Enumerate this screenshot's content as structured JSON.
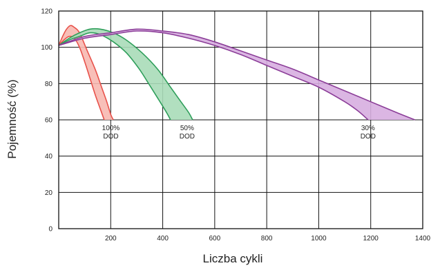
{
  "chart_data": {
    "type": "area",
    "xlabel": "Liczba cykli",
    "ylabel": "Pojemność (%)",
    "xlim": [
      0,
      1400
    ],
    "ylim": [
      0,
      120
    ],
    "x_ticks": [
      200,
      400,
      600,
      800,
      1000,
      1200,
      1400
    ],
    "y_ticks": [
      0,
      20,
      40,
      60,
      80,
      100,
      120
    ],
    "grid": true,
    "series": [
      {
        "color": "#e8514a",
        "fill": "#f7b8b0",
        "label_lines": [
          "100%",
          "DOD"
        ],
        "upper": [
          [
            0,
            101
          ],
          [
            15,
            106
          ],
          [
            30,
            110
          ],
          [
            45,
            112
          ],
          [
            60,
            111
          ],
          [
            80,
            108
          ],
          [
            110,
            98
          ],
          [
            140,
            88
          ],
          [
            165,
            78
          ],
          [
            185,
            70
          ],
          [
            200,
            63
          ],
          [
            210,
            60
          ]
        ],
        "lower": [
          [
            0,
            101
          ],
          [
            20,
            104
          ],
          [
            40,
            106
          ],
          [
            60,
            105
          ],
          [
            80,
            100
          ],
          [
            100,
            92
          ],
          [
            120,
            83
          ],
          [
            140,
            74
          ],
          [
            160,
            66
          ],
          [
            175,
            60
          ]
        ]
      },
      {
        "color": "#2e9e5a",
        "fill": "#a8dcb8",
        "label_lines": [
          "50%",
          "DOD"
        ],
        "upper": [
          [
            0,
            101
          ],
          [
            40,
            105
          ],
          [
            80,
            108
          ],
          [
            120,
            110
          ],
          [
            160,
            110
          ],
          [
            210,
            108
          ],
          [
            260,
            104
          ],
          [
            320,
            97
          ],
          [
            380,
            88
          ],
          [
            430,
            78
          ],
          [
            470,
            70
          ],
          [
            500,
            64
          ],
          [
            515,
            60
          ]
        ],
        "lower": [
          [
            0,
            101
          ],
          [
            40,
            104
          ],
          [
            80,
            106
          ],
          [
            120,
            108
          ],
          [
            160,
            107
          ],
          [
            210,
            103
          ],
          [
            260,
            97
          ],
          [
            310,
            88
          ],
          [
            350,
            79
          ],
          [
            385,
            71
          ],
          [
            415,
            64
          ],
          [
            430,
            60
          ]
        ]
      },
      {
        "color": "#8b3d98",
        "fill": "#d7aee0",
        "label_lines": [
          "30%",
          "DOD"
        ],
        "upper": [
          [
            0,
            101
          ],
          [
            100,
            106
          ],
          [
            200,
            108
          ],
          [
            300,
            110
          ],
          [
            400,
            109
          ],
          [
            500,
            107
          ],
          [
            600,
            103
          ],
          [
            700,
            98
          ],
          [
            800,
            93
          ],
          [
            900,
            88
          ],
          [
            1000,
            82
          ],
          [
            1100,
            76
          ],
          [
            1200,
            70
          ],
          [
            1300,
            64
          ],
          [
            1370,
            60
          ]
        ],
        "lower": [
          [
            0,
            101
          ],
          [
            100,
            105
          ],
          [
            200,
            107
          ],
          [
            300,
            109
          ],
          [
            400,
            108
          ],
          [
            500,
            105
          ],
          [
            600,
            101
          ],
          [
            700,
            96
          ],
          [
            800,
            90
          ],
          [
            900,
            84
          ],
          [
            1000,
            78
          ],
          [
            1100,
            70
          ],
          [
            1150,
            65
          ],
          [
            1190,
            60
          ]
        ]
      }
    ]
  }
}
